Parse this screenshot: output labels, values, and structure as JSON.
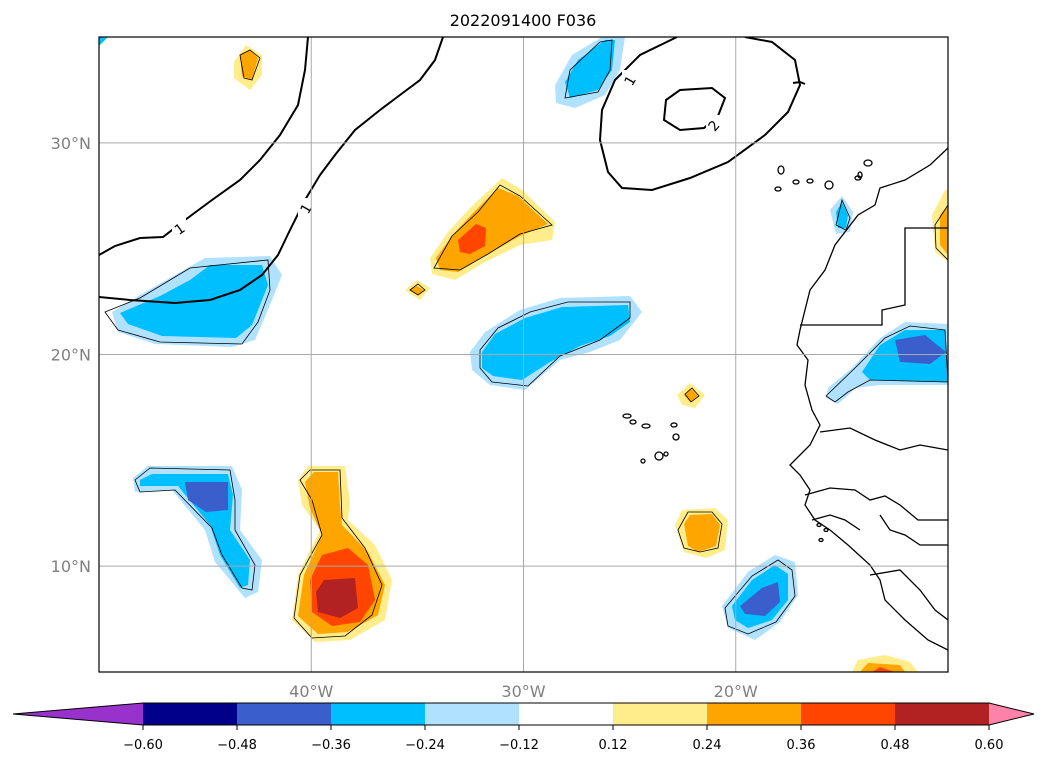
{
  "title": "2022091400 F036",
  "map": {
    "lon_range": [
      -50,
      -10
    ],
    "lat_range": [
      5,
      35
    ],
    "lon_ticks": [
      -40,
      -30,
      -20
    ],
    "lat_ticks": [
      10,
      20,
      30
    ],
    "lon_labels": [
      "40°W",
      "30°W",
      "20°W"
    ],
    "lat_labels": [
      "10°N",
      "20°N",
      "30°N"
    ],
    "gridlines": true
  },
  "contour_labels": [
    "1",
    "1",
    "1",
    "2"
  ],
  "colorbar": {
    "ticks": [
      "−0.60",
      "−0.48",
      "−0.36",
      "−0.24",
      "−0.12",
      "0.12",
      "0.24",
      "0.36",
      "0.48",
      "0.60"
    ],
    "colors": [
      "#9932cc",
      "#00008b",
      "#3a5fcd",
      "#00bfff",
      "#b0e2ff",
      "#ffffff",
      "#ffec8b",
      "#ffa500",
      "#ff4500",
      "#b22222",
      "#ff82ab"
    ],
    "extend": "both",
    "orientation": "horizontal"
  },
  "palette": {
    "lightblue": "#b0e2ff",
    "skyblue": "#00bfff",
    "royalblue": "#3a5fcd",
    "lightyellow": "#ffec8b",
    "orange": "#ffa500",
    "orangered": "#ff4500",
    "firebrick": "#b22222"
  }
}
